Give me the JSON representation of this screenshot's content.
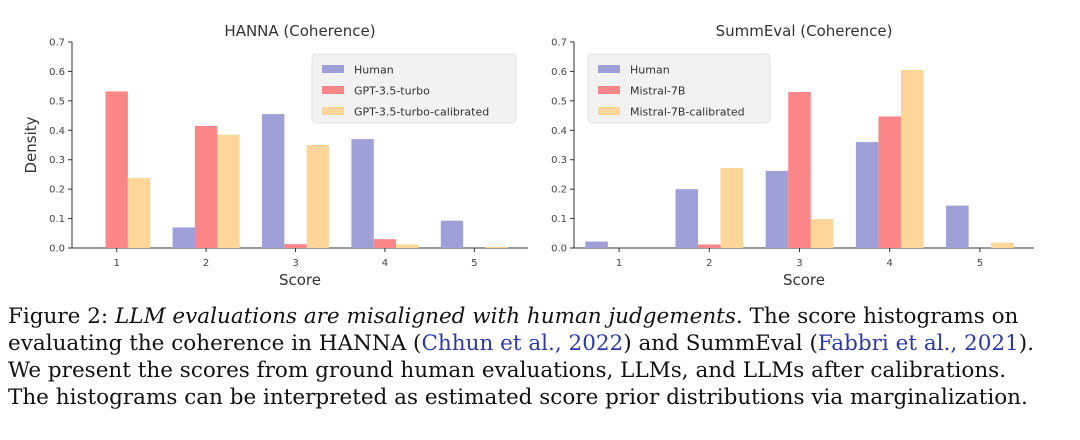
{
  "chart_data": [
    {
      "type": "bar",
      "title": "HANNA (Coherence)",
      "xlabel": "Score",
      "ylabel": "Density",
      "categories": [
        "1",
        "2",
        "3",
        "4",
        "5"
      ],
      "yticks": [
        "0.0",
        "0.1",
        "0.2",
        "0.3",
        "0.4",
        "0.5",
        "0.6",
        "0.7"
      ],
      "ylim": [
        0,
        0.7
      ],
      "legend_position": "top-right",
      "series": [
        {
          "name": "Human",
          "color": "#9fa0d8",
          "values": [
            0.0,
            0.07,
            0.455,
            0.37,
            0.093
          ]
        },
        {
          "name": "GPT-3.5-turbo",
          "color": "#fb8688",
          "values": [
            0.532,
            0.415,
            0.013,
            0.03,
            0.0
          ]
        },
        {
          "name": "GPT-3.5-turbo-calibrated",
          "color": "#fed69a",
          "values": [
            0.238,
            0.385,
            0.35,
            0.012,
            0.004
          ]
        }
      ]
    },
    {
      "type": "bar",
      "title": "SummEval (Coherence)",
      "xlabel": "Score",
      "ylabel": "",
      "categories": [
        "1",
        "2",
        "3",
        "4",
        "5"
      ],
      "yticks": [
        "0.0",
        "0.1",
        "0.2",
        "0.3",
        "0.4",
        "0.5",
        "0.6",
        "0.7"
      ],
      "ylim": [
        0,
        0.7
      ],
      "legend_position": "top-left",
      "series": [
        {
          "name": "Human",
          "color": "#9fa0d8",
          "values": [
            0.022,
            0.2,
            0.262,
            0.36,
            0.144
          ]
        },
        {
          "name": "Mistral-7B",
          "color": "#fb8688",
          "values": [
            0.0,
            0.012,
            0.53,
            0.447,
            0.0
          ]
        },
        {
          "name": "Mistral-7B-calibrated",
          "color": "#fed69a",
          "values": [
            0.0,
            0.272,
            0.098,
            0.605,
            0.018
          ]
        }
      ]
    }
  ],
  "caption": {
    "fig_label": "Figure 2:",
    "italic_title": "LLM evaluations are misaligned with human judgements",
    "line1_rest": ". The score histograms on",
    "line2_a": "evaluating the coherence in HANNA (",
    "cite1": "Chhun et al., 2022",
    "line2_b": ") and SummEval (",
    "cite2": "Fabbri et al., 2021",
    "line2_c": ").",
    "line3": "We present the scores from ground human evaluations, LLMs, and LLMs after calibrations.",
    "line4": "The histograms can be interpreted as estimated score prior distributions via marginalization."
  }
}
